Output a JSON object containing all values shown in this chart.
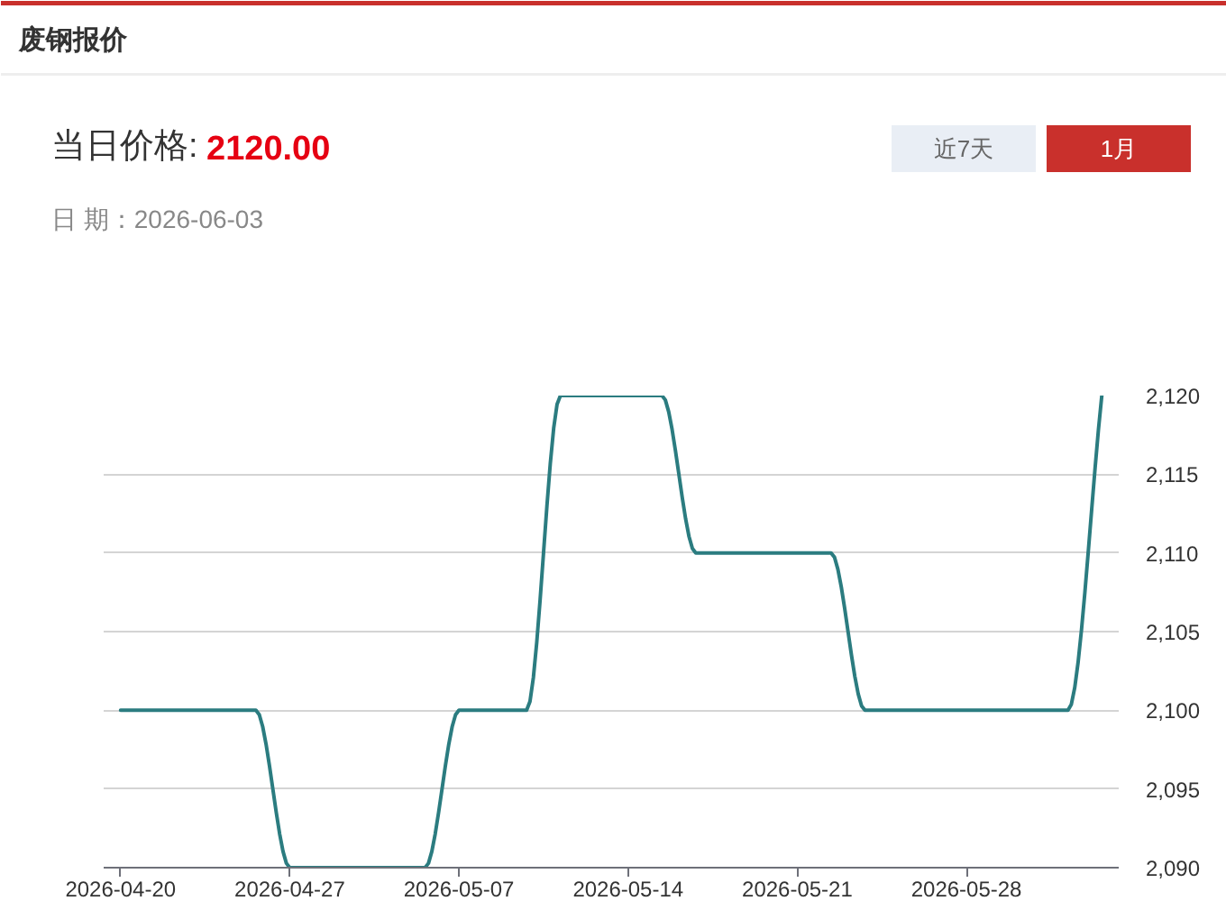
{
  "chart_data": {
    "type": "line",
    "title": "废钢报价",
    "annotations": [
      "当日价格:",
      "2120.00",
      "日 期：2026-06-03",
      "近7天",
      "1月"
    ],
    "categories": [
      "2026-04-20",
      null,
      null,
      null,
      null,
      "2026-04-27",
      null,
      null,
      null,
      null,
      "2026-05-07",
      null,
      null,
      null,
      null,
      "2026-05-14",
      null,
      null,
      null,
      null,
      "2026-05-21",
      null,
      null,
      null,
      null,
      "2026-05-28",
      null,
      null,
      null,
      null
    ],
    "series": [
      {
        "color": "#2b7c80",
        "values": [
          2100,
          2100,
          2100,
          2100,
          2100,
          2090,
          2090,
          2090,
          2090,
          2090,
          2100,
          2100,
          2100,
          2120,
          2120,
          2120,
          2120,
          2110,
          2110,
          2110,
          2110,
          2110,
          2100,
          2100,
          2100,
          2100,
          2100,
          2100,
          2100,
          2120
        ]
      }
    ],
    "ylim": [
      2090,
      2120
    ],
    "yticks": [
      {
        "value": 2090,
        "label": "2,090"
      },
      {
        "value": 2095,
        "label": "2,095"
      },
      {
        "value": 2100,
        "label": "2,100"
      },
      {
        "value": 2105,
        "label": "2,105"
      },
      {
        "value": 2110,
        "label": "2,110"
      },
      {
        "value": 2115,
        "label": "2,115"
      },
      {
        "value": 2120,
        "label": "2,120"
      }
    ],
    "grid": "y"
  }
}
